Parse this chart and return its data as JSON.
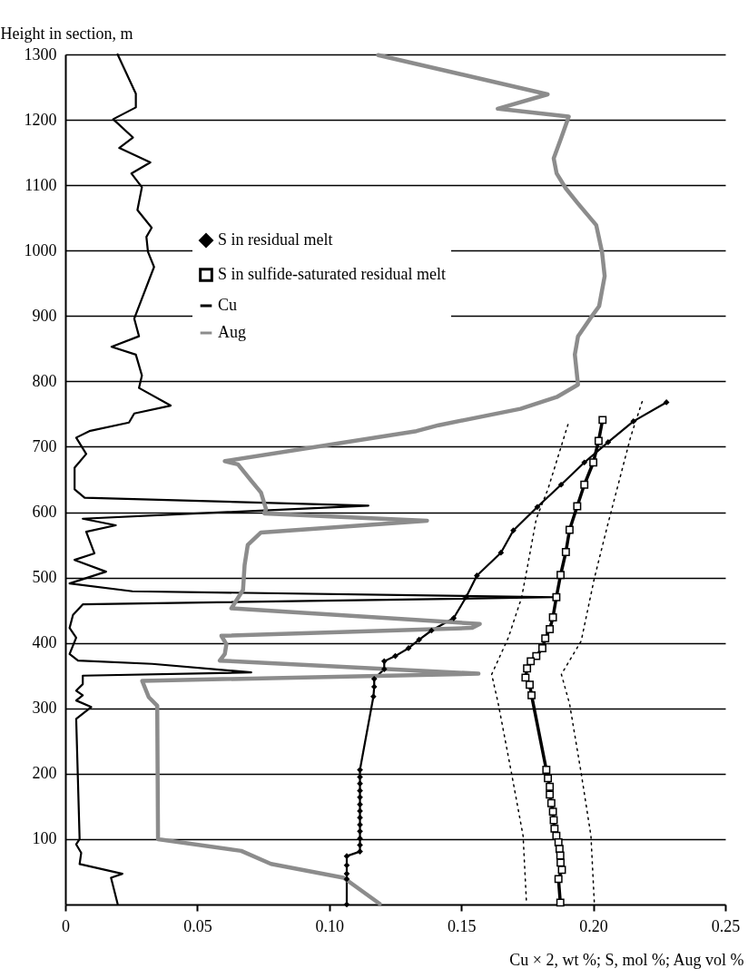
{
  "chart_data": {
    "type": "line",
    "xlabel": "Cu × 2, wt %; S, mol %; Aug vol %",
    "ylabel": "Height in section, m",
    "xlim": [
      0,
      0.25
    ],
    "ylim": [
      0,
      1300
    ],
    "xticks": [
      0,
      0.05,
      {
        "value": 0.1,
        "label": "0.10"
      },
      0.15,
      {
        "value": 0.2,
        "label": "0.20"
      },
      0.25
    ],
    "yticks": [
      100,
      200,
      300,
      400,
      500,
      600,
      700,
      800,
      900,
      1000,
      1100,
      1200,
      1300
    ],
    "grid": "y",
    "legend": "top left",
    "series": [
      {
        "name": "S in residual melt",
        "color": "#000000",
        "marker": "diamond",
        "line_style": "solid",
        "x": [
          0.2277,
          0.2152,
          0.2056,
          0.1966,
          0.1878,
          0.1788,
          0.1697,
          0.165,
          0.1559,
          0.1518,
          0.1471,
          0.1387,
          0.134,
          0.13,
          0.125,
          0.1208,
          0.1208,
          0.117,
          0.117,
          0.1167,
          0.1116,
          0.1116,
          0.1116,
          0.1116,
          0.1116,
          0.1116,
          0.1116,
          0.1116,
          0.1116,
          0.1116,
          0.1116,
          0.1116,
          0.1116,
          0.1066,
          0.1066,
          0.1066,
          0.1066,
          0.1066
        ],
        "values": [
          768,
          739,
          707,
          676,
          642,
          608,
          572,
          538,
          503,
          470,
          438,
          419,
          405,
          392,
          380,
          372,
          360,
          345,
          333,
          318,
          206,
          195,
          185,
          174,
          164,
          153,
          143,
          133,
          122,
          112,
          101,
          91,
          81,
          74,
          60,
          47,
          39,
          0
        ]
      },
      {
        "name": "S in sulfide-saturated residual melt",
        "color": "#000000",
        "marker": "square",
        "line_style": "solid",
        "x": [
          0.2035,
          0.202,
          0.2,
          0.1966,
          0.1939,
          0.191,
          0.1896,
          0.1876,
          0.186,
          0.1847,
          0.1835,
          0.1818,
          0.1807,
          0.1784,
          0.1763,
          0.1749,
          0.1743,
          0.1759,
          0.1766,
          0.1822,
          0.1828,
          0.1835,
          0.1835,
          0.1841,
          0.1847,
          0.185,
          0.1853,
          0.186,
          0.1868,
          0.1872,
          0.1875,
          0.1876,
          0.1881,
          0.1868,
          0.1875
        ],
        "values": [
          741,
          709,
          676,
          642,
          609,
          573,
          539,
          504,
          470,
          439,
          421,
          407,
          392,
          380,
          372,
          361,
          347,
          336,
          320,
          206,
          193,
          180,
          168,
          155,
          142,
          129,
          116,
          105,
          95,
          85,
          75,
          64,
          53,
          39,
          3
        ]
      },
      {
        "name": "Cu",
        "color": "#000000",
        "marker": "none",
        "line_style": "solid",
        "x": [
          0.0198,
          0.0267,
          0.0267,
          0.0181,
          0.0256,
          0.0204,
          0.0322,
          0.025,
          0.029,
          0.0273,
          0.0327,
          0.0307,
          0.0313,
          0.0336,
          0.0261,
          0.0279,
          0.0175,
          0.0267,
          0.029,
          0.0279,
          0.0399,
          0.0261,
          0.0241,
          0.0091,
          0.0041,
          0.0079,
          0.0035,
          0.0035,
          0.0073,
          0.1148,
          0.0066,
          0.0191,
          0.0079,
          0.011,
          0.0035,
          0.0154,
          0.0016,
          0.0254,
          0.186,
          0.0066,
          0.0029,
          0.0016,
          0.0041,
          0.0016,
          0.0048,
          0.0329,
          0.0704,
          0.0066,
          0.0066,
          0.0041,
          0.0066,
          0.0041,
          0.0098,
          0.0041,
          0.0054,
          0.0041,
          0.006,
          0.0054,
          0.0216,
          0.0173,
          0.0198
        ],
        "values": [
          1300,
          1240,
          1219,
          1201,
          1173,
          1157,
          1135,
          1118,
          1097,
          1062,
          1035,
          1021,
          998,
          975,
          896,
          869,
          853,
          841,
          809,
          790,
          763,
          751,
          737,
          724,
          714,
          689,
          668,
          635,
          622,
          610,
          590,
          580,
          570,
          537,
          527,
          509,
          491,
          479,
          470,
          459,
          443,
          423,
          408,
          383,
          373,
          368,
          355,
          350,
          337,
          327,
          320,
          312,
          302,
          284,
          100,
          92,
          79,
          62,
          47,
          41,
          1
        ]
      },
      {
        "name": "Aug",
        "color": "#8c8c8c",
        "marker": "none",
        "line_style": "solid",
        "x": [
          0.1185,
          0.1827,
          0.1638,
          0.1907,
          0.1879,
          0.185,
          0.1861,
          0.1896,
          0.1942,
          0.2011,
          0.2033,
          0.2043,
          0.2022,
          0.1988,
          0.1942,
          0.193,
          0.1942,
          0.1861,
          0.1724,
          0.1414,
          0.133,
          0.0604,
          0.0654,
          0.0704,
          0.0741,
          0.076,
          0.0754,
          0.137,
          0.0741,
          0.0691,
          0.0679,
          0.0673,
          0.0629,
          0.157,
          0.154,
          0.0591,
          0.061,
          0.0604,
          0.0585,
          0.1565,
          0.0291,
          0.0316,
          0.0348,
          0.0351,
          0.0666,
          0.0779,
          0.1054,
          0.1191
        ],
        "values": [
          1299,
          1239,
          1217,
          1205,
          1173,
          1141,
          1118,
          1095,
          1072,
          1039,
          998,
          961,
          915,
          896,
          869,
          841,
          795,
          776,
          758,
          733,
          724,
          678,
          673,
          648,
          630,
          605,
          598,
          587,
          569,
          550,
          519,
          481,
          453,
          429,
          423,
          411,
          398,
          383,
          373,
          353,
          342,
          317,
          304,
          100,
          82,
          62,
          41,
          1
        ]
      },
      {
        "color": "#000000",
        "marker": "none",
        "line_style": "dotted",
        "x": [
          0.1904,
          0.1828,
          0.1784,
          0.1747,
          0.1728,
          0.1678,
          0.1615,
          0.164,
          0.169,
          0.1734,
          0.1747
        ],
        "values": [
          734,
          635,
          590,
          509,
          469,
          408,
          352,
          307,
          201,
          105,
          1
        ]
      },
      {
        "color": "#000000",
        "marker": "none",
        "line_style": "dotted",
        "x": [
          0.2185,
          0.2142,
          0.2054,
          0.2004,
          0.1954,
          0.1879,
          0.191,
          0.1954,
          0.1991,
          0.2004
        ],
        "values": [
          769,
          716,
          580,
          499,
          403,
          352,
          307,
          201,
          105,
          1
        ]
      }
    ]
  }
}
